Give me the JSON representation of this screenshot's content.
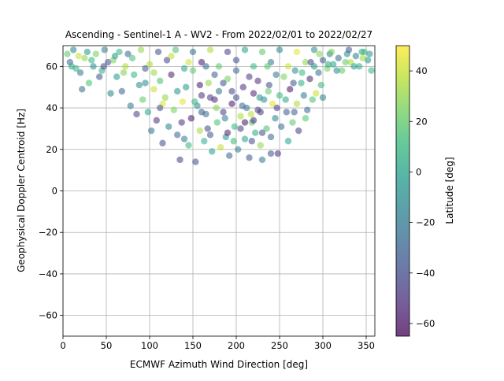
{
  "chart_data": {
    "type": "scatter",
    "title": "Ascending - Sentinel-1 A - WV2 - From 2022/02/01 to 2022/02/27",
    "xlabel": "ECMWF Azimuth Wind Direction [deg]",
    "ylabel": "Geophysical Doppler Centroid [Hz]",
    "xlim": [
      0,
      360
    ],
    "ylim": [
      -70,
      70
    ],
    "xticks": [
      0,
      50,
      100,
      150,
      200,
      250,
      300,
      350
    ],
    "yticks": [
      -60,
      -40,
      -20,
      0,
      20,
      40,
      60
    ],
    "grid": true,
    "point_alpha": 0.55,
    "colorbar": {
      "label": "Latitude [deg]",
      "min": -65,
      "max": 50,
      "ticks": [
        40,
        20,
        0,
        -20,
        -40,
        -60
      ],
      "colormap": "viridis",
      "colors": [
        "#440154",
        "#482878",
        "#3e4989",
        "#31688e",
        "#26828e",
        "#1f9e89",
        "#35b779",
        "#6ece58",
        "#b5de2b",
        "#fde725"
      ]
    },
    "points": [
      [
        8,
        62,
        -30
      ],
      [
        15,
        59,
        10
      ],
      [
        22,
        49,
        -25
      ],
      [
        25,
        64,
        30
      ],
      [
        30,
        52,
        15
      ],
      [
        35,
        60,
        -10
      ],
      [
        42,
        55,
        -35
      ],
      [
        45,
        58,
        5
      ],
      [
        52,
        62,
        -40
      ],
      [
        55,
        47,
        -15
      ],
      [
        58,
        63,
        25
      ],
      [
        62,
        55,
        -5
      ],
      [
        68,
        48,
        -30
      ],
      [
        72,
        60,
        35
      ],
      [
        78,
        41,
        -20
      ],
      [
        82,
        56,
        10
      ],
      [
        85,
        37,
        -45
      ],
      [
        88,
        51,
        -10
      ],
      [
        92,
        44,
        20
      ],
      [
        95,
        59,
        -35
      ],
      [
        98,
        38,
        0
      ],
      [
        102,
        29,
        -25
      ],
      [
        105,
        49,
        40
      ],
      [
        108,
        34,
        -50
      ],
      [
        112,
        53,
        15
      ],
      [
        115,
        23,
        -40
      ],
      [
        118,
        45,
        30
      ],
      [
        122,
        31,
        -15
      ],
      [
        125,
        56,
        -55
      ],
      [
        128,
        39,
        25
      ],
      [
        132,
        27,
        -30
      ],
      [
        135,
        15,
        -45
      ],
      [
        138,
        43,
        45
      ],
      [
        140,
        25,
        -20
      ],
      [
        142,
        50,
        -5
      ],
      [
        145,
        22,
        10
      ],
      [
        148,
        35,
        -60
      ],
      [
        150,
        58,
        20
      ],
      [
        153,
        14,
        -40
      ],
      [
        155,
        41,
        -10
      ],
      [
        158,
        29,
        35
      ],
      [
        160,
        46,
        -50
      ],
      [
        163,
        24,
        5
      ],
      [
        165,
        37,
        -25
      ],
      [
        168,
        52,
        30
      ],
      [
        170,
        27,
        -35
      ],
      [
        172,
        19,
        0
      ],
      [
        175,
        44,
        -55
      ],
      [
        178,
        33,
        15
      ],
      [
        180,
        48,
        -20
      ],
      [
        182,
        21,
        40
      ],
      [
        185,
        38,
        -45
      ],
      [
        188,
        26,
        -5
      ],
      [
        190,
        54,
        25
      ],
      [
        192,
        17,
        -30
      ],
      [
        195,
        42,
        -60
      ],
      [
        198,
        31,
        10
      ],
      [
        200,
        45,
        -40
      ],
      [
        202,
        20,
        -15
      ],
      [
        205,
        36,
        35
      ],
      [
        208,
        50,
        -50
      ],
      [
        210,
        25,
        0
      ],
      [
        212,
        40,
        -25
      ],
      [
        215,
        16,
        -35
      ],
      [
        218,
        33,
        20
      ],
      [
        220,
        47,
        -55
      ],
      [
        222,
        28,
        5
      ],
      [
        225,
        39,
        -45
      ],
      [
        228,
        22,
        30
      ],
      [
        230,
        15,
        -20
      ],
      [
        232,
        44,
        -10
      ],
      [
        235,
        30,
        15
      ],
      [
        238,
        51,
        -40
      ],
      [
        240,
        26,
        -30
      ],
      [
        242,
        42,
        45
      ],
      [
        245,
        35,
        -15
      ],
      [
        248,
        18,
        -50
      ],
      [
        250,
        46,
        10
      ],
      [
        252,
        31,
        -25
      ],
      [
        255,
        55,
        25
      ],
      [
        258,
        38,
        -35
      ],
      [
        260,
        24,
        0
      ],
      [
        262,
        49,
        -60
      ],
      [
        265,
        33,
        20
      ],
      [
        268,
        58,
        -10
      ],
      [
        270,
        42,
        35
      ],
      [
        272,
        29,
        -45
      ],
      [
        275,
        52,
        5
      ],
      [
        278,
        46,
        -20
      ],
      [
        280,
        62,
        30
      ],
      [
        282,
        39,
        -30
      ],
      [
        285,
        54,
        -55
      ],
      [
        288,
        44,
        15
      ],
      [
        290,
        60,
        -5
      ],
      [
        292,
        47,
        40
      ],
      [
        295,
        57,
        -25
      ],
      [
        298,
        51,
        10
      ],
      [
        300,
        63,
        -35
      ],
      [
        305,
        59,
        25
      ],
      [
        308,
        66,
        -15
      ],
      [
        312,
        61,
        0
      ],
      [
        318,
        64,
        -30
      ],
      [
        322,
        58,
        20
      ],
      [
        328,
        66,
        -10
      ],
      [
        332,
        62,
        35
      ],
      [
        338,
        65,
        -20
      ],
      [
        342,
        60,
        5
      ],
      [
        348,
        67,
        15
      ],
      [
        352,
        63,
        -5
      ],
      [
        356,
        58,
        10
      ],
      [
        5,
        66,
        20
      ],
      [
        12,
        68,
        -15
      ],
      [
        18,
        65,
        40
      ],
      [
        28,
        67,
        -5
      ],
      [
        38,
        66,
        25
      ],
      [
        48,
        68,
        -20
      ],
      [
        65,
        67,
        10
      ],
      [
        75,
        66,
        -30
      ],
      [
        90,
        68,
        30
      ],
      [
        110,
        67,
        -40
      ],
      [
        130,
        68,
        15
      ],
      [
        150,
        67,
        -25
      ],
      [
        170,
        68,
        35
      ],
      [
        190,
        67,
        -45
      ],
      [
        210,
        68,
        0
      ],
      [
        230,
        67,
        20
      ],
      [
        250,
        68,
        -15
      ],
      [
        270,
        67,
        45
      ],
      [
        290,
        68,
        -10
      ],
      [
        310,
        67,
        25
      ],
      [
        330,
        68,
        -35
      ],
      [
        345,
        67,
        5
      ],
      [
        100,
        61,
        35
      ],
      [
        120,
        63,
        -45
      ],
      [
        140,
        59,
        0
      ],
      [
        160,
        62,
        -60
      ],
      [
        180,
        60,
        20
      ],
      [
        200,
        63,
        -40
      ],
      [
        220,
        60,
        10
      ],
      [
        240,
        62,
        -20
      ],
      [
        260,
        60,
        40
      ],
      [
        60,
        65,
        -5
      ],
      [
        80,
        64,
        15
      ],
      [
        10,
        60,
        5
      ],
      [
        200,
        58,
        -30
      ],
      [
        215,
        55,
        -48
      ],
      [
        185,
        52,
        -38
      ],
      [
        225,
        53,
        -52
      ],
      [
        195,
        48,
        -42
      ],
      [
        205,
        30,
        -45
      ],
      [
        218,
        24,
        -40
      ],
      [
        228,
        38,
        -47
      ],
      [
        175,
        56,
        -33
      ],
      [
        165,
        60,
        -28
      ],
      [
        145,
        62,
        42
      ],
      [
        125,
        65,
        38
      ],
      [
        115,
        42,
        44
      ],
      [
        132,
        48,
        -8
      ],
      [
        158,
        51,
        -58
      ],
      [
        246,
        56,
        -22
      ],
      [
        236,
        60,
        18
      ],
      [
        266,
        52,
        -36
      ],
      [
        276,
        57,
        12
      ],
      [
        286,
        62,
        -42
      ],
      [
        296,
        66,
        28
      ],
      [
        306,
        61,
        3
      ],
      [
        316,
        58,
        -12
      ],
      [
        326,
        62,
        22
      ],
      [
        336,
        60,
        -2
      ],
      [
        346,
        64,
        32
      ],
      [
        354,
        66,
        -8
      ],
      [
        20,
        57,
        -20
      ],
      [
        33,
        63,
        8
      ],
      [
        47,
        60,
        -42
      ],
      [
        70,
        57,
        28
      ],
      [
        95,
        52,
        -12
      ],
      [
        105,
        57,
        32
      ],
      [
        112,
        40,
        -38
      ],
      [
        137,
        33,
        -52
      ],
      [
        152,
        43,
        8
      ],
      [
        167,
        30,
        -42
      ],
      [
        177,
        40,
        28
      ],
      [
        187,
        35,
        -18
      ],
      [
        197,
        24,
        12
      ],
      [
        207,
        41,
        -28
      ],
      [
        217,
        37,
        38
      ],
      [
        227,
        45,
        -8
      ],
      [
        237,
        48,
        22
      ],
      [
        247,
        40,
        -48
      ],
      [
        257,
        44,
        2
      ],
      [
        267,
        38,
        -32
      ],
      [
        280,
        35,
        18
      ],
      [
        240,
        18,
        -35
      ],
      [
        300,
        45,
        -15
      ],
      [
        210,
        33,
        -60
      ],
      [
        190,
        28,
        -55
      ],
      [
        220,
        34,
        -50
      ],
      [
        230,
        28,
        -40
      ],
      [
        170,
        45,
        -48
      ],
      [
        160,
        38,
        -35
      ]
    ]
  }
}
